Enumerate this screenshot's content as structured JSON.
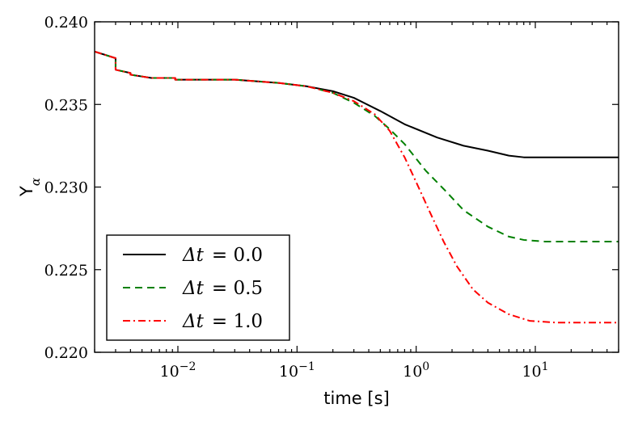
{
  "chart_data": {
    "type": "line",
    "title": "",
    "xlabel": "time [s]",
    "ylabel_main": "Y",
    "ylabel_sub": "α",
    "xscale": "log",
    "xlim": [
      0.002,
      50
    ],
    "ylim": [
      0.22,
      0.24
    ],
    "grid": false,
    "legend_location": "lower-left",
    "yticks": [
      0.22,
      0.225,
      0.23,
      0.235,
      0.24
    ],
    "ytick_labels": [
      "0.220",
      "0.225",
      "0.230",
      "0.235",
      "0.240"
    ],
    "xticks": [
      {
        "value": 0.01,
        "base": "10",
        "exp": "−2"
      },
      {
        "value": 0.1,
        "base": "10",
        "exp": "−1"
      },
      {
        "value": 1,
        "base": "10",
        "exp": "0"
      },
      {
        "value": 10,
        "base": "10",
        "exp": "1"
      }
    ],
    "series": [
      {
        "name": "Δt = 0.0",
        "legend_lhs": "Δt",
        "legend_rhs": "= 0.0",
        "color": "#000000",
        "dash": "",
        "points": [
          [
            0.002,
            0.2382
          ],
          [
            0.003,
            0.2378
          ],
          [
            0.003,
            0.2371
          ],
          [
            0.004,
            0.2369
          ],
          [
            0.004,
            0.2368
          ],
          [
            0.006,
            0.2366
          ],
          [
            0.0095,
            0.2366
          ],
          [
            0.0095,
            0.2365
          ],
          [
            0.03,
            0.2365
          ],
          [
            0.07,
            0.2363
          ],
          [
            0.12,
            0.2361
          ],
          [
            0.2,
            0.2358
          ],
          [
            0.3,
            0.2354
          ],
          [
            0.5,
            0.2346
          ],
          [
            0.8,
            0.2338
          ],
          [
            1.5,
            0.233
          ],
          [
            2.5,
            0.2325
          ],
          [
            4,
            0.2322
          ],
          [
            6,
            0.2319
          ],
          [
            8,
            0.2318
          ],
          [
            50,
            0.2318
          ]
        ]
      },
      {
        "name": "Δt = 0.5",
        "legend_lhs": "Δt",
        "legend_rhs": "= 0.5",
        "color": "#008000",
        "dash": "9,6",
        "points": [
          [
            0.002,
            0.2382
          ],
          [
            0.003,
            0.2378
          ],
          [
            0.003,
            0.2371
          ],
          [
            0.004,
            0.2369
          ],
          [
            0.004,
            0.2368
          ],
          [
            0.006,
            0.2366
          ],
          [
            0.0095,
            0.2366
          ],
          [
            0.0095,
            0.2365
          ],
          [
            0.03,
            0.2365
          ],
          [
            0.07,
            0.2363
          ],
          [
            0.12,
            0.2361
          ],
          [
            0.2,
            0.2357
          ],
          [
            0.3,
            0.2351
          ],
          [
            0.45,
            0.2343
          ],
          [
            0.6,
            0.2335
          ],
          [
            0.8,
            0.2326
          ],
          [
            1.2,
            0.231
          ],
          [
            1.8,
            0.2297
          ],
          [
            2.5,
            0.2286
          ],
          [
            4,
            0.2276
          ],
          [
            6,
            0.227
          ],
          [
            8,
            0.2268
          ],
          [
            12,
            0.2267
          ],
          [
            50,
            0.2267
          ]
        ]
      },
      {
        "name": "Δt = 1.0",
        "legend_lhs": "Δt",
        "legend_rhs": "= 1.0",
        "color": "#ff0000",
        "dash": "9,4,2,4",
        "points": [
          [
            0.002,
            0.2382
          ],
          [
            0.003,
            0.2378
          ],
          [
            0.003,
            0.2371
          ],
          [
            0.004,
            0.2369
          ],
          [
            0.004,
            0.2368
          ],
          [
            0.006,
            0.2366
          ],
          [
            0.0095,
            0.2366
          ],
          [
            0.0095,
            0.2365
          ],
          [
            0.03,
            0.2365
          ],
          [
            0.07,
            0.2363
          ],
          [
            0.12,
            0.2361
          ],
          [
            0.2,
            0.2357
          ],
          [
            0.3,
            0.2352
          ],
          [
            0.45,
            0.2344
          ],
          [
            0.6,
            0.2334
          ],
          [
            0.8,
            0.2318
          ],
          [
            1.0,
            0.2303
          ],
          [
            1.3,
            0.2285
          ],
          [
            1.7,
            0.2267
          ],
          [
            2.2,
            0.2252
          ],
          [
            3,
            0.2238
          ],
          [
            4,
            0.223
          ],
          [
            6,
            0.2223
          ],
          [
            9,
            0.2219
          ],
          [
            15,
            0.2218
          ],
          [
            50,
            0.2218
          ]
        ]
      }
    ]
  }
}
